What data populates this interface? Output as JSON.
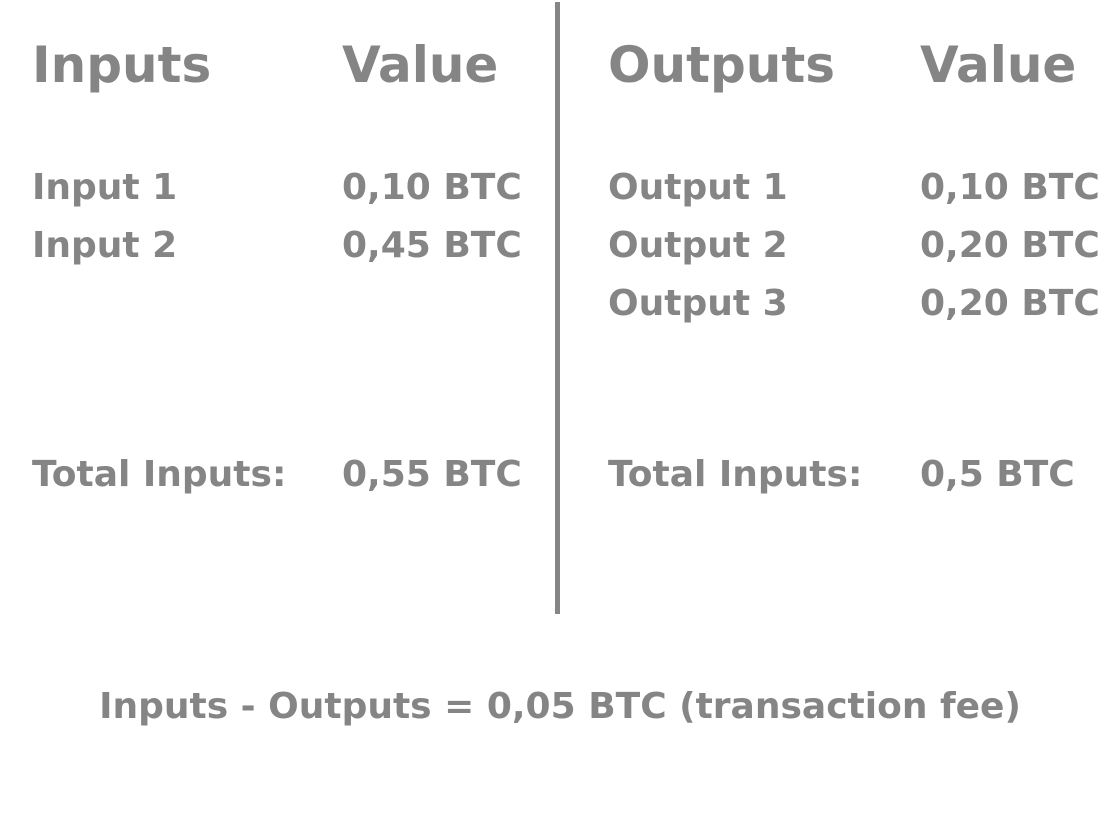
{
  "inputs_panel": {
    "header_name": "Inputs",
    "header_value": "Value",
    "rows": [
      {
        "name": "Input 1",
        "value": "0,10 BTC"
      },
      {
        "name": "Input 2",
        "value": "0,45 BTC"
      }
    ],
    "total_label": "Total Inputs:",
    "total_value": "0,55 BTC"
  },
  "outputs_panel": {
    "header_name": "Outputs",
    "header_value": "Value",
    "rows": [
      {
        "name": "Output 1",
        "value": "0,10 BTC"
      },
      {
        "name": "Output 2",
        "value": "0,20 BTC"
      },
      {
        "name": "Output 3",
        "value": "0,20 BTC"
      }
    ],
    "total_label": "Total Inputs:",
    "total_value": "0,5 BTC"
  },
  "summary": "Inputs - Outputs = 0,05 BTC (transaction fee)",
  "colors": {
    "text": "#858585",
    "divider": "#858585",
    "background": "#ffffff"
  }
}
